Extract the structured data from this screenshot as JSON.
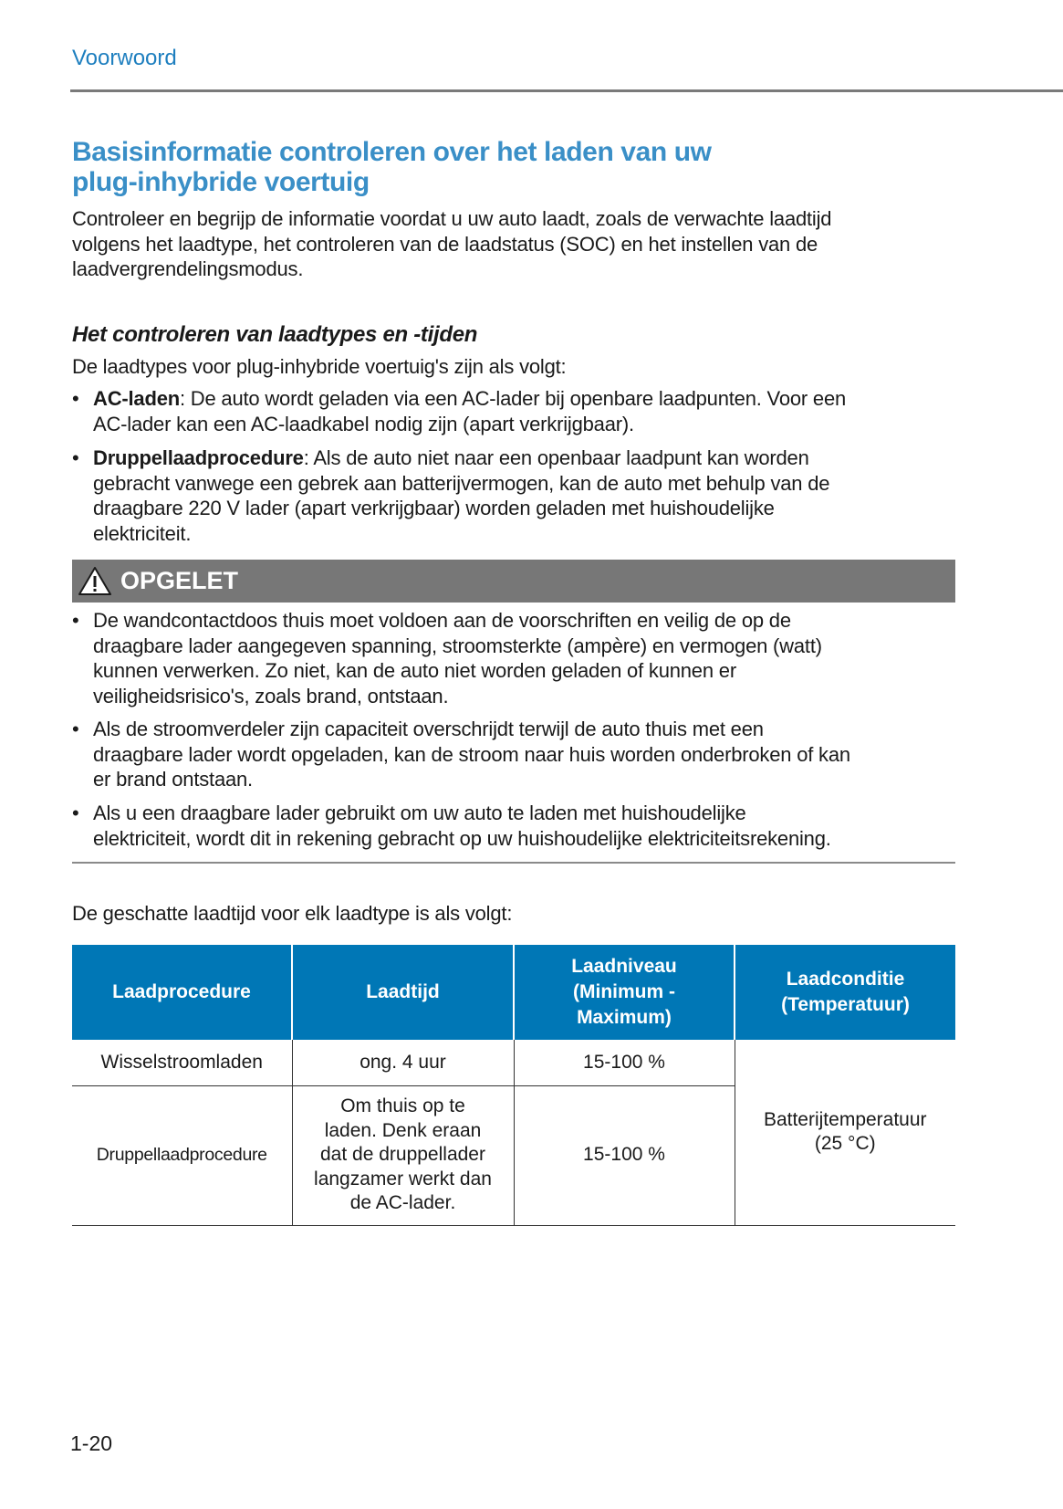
{
  "header": {
    "section": "Voorwoord"
  },
  "title": {
    "lines": [
      "Basisinformatie controleren over het laden van uw",
      "plug-inhybride voertuig"
    ]
  },
  "intro": {
    "lines": [
      "Controleer en begrijp de informatie voordat u uw auto laadt, zoals de verwachte laadtijd",
      "volgens het laadtype, het controleren van de laadstatus (SOC) en het instellen van de",
      "laadvergrendelingsmodus."
    ]
  },
  "subheading": "Het controleren van laadtypes en -tijden",
  "types_intro": "De laadtypes voor plug-inhybride voertuig's zijn als volgt:",
  "types": [
    {
      "term": "AC-laden",
      "lines": [
        ": De auto wordt geladen via een AC-lader bij openbare laadpunten. Voor een",
        "AC-lader kan een AC-laadkabel nodig zijn (apart verkrijgbaar)."
      ]
    },
    {
      "term": "Druppellaadprocedure",
      "lines": [
        ": Als de auto niet naar een openbaar laadpunt kan worden",
        "gebracht vanwege een gebrek aan batterijvermogen, kan de auto met behulp van de",
        "draagbare 220 V lader (apart verkrijgbaar) worden geladen met huishoudelijke",
        "elektriciteit."
      ]
    }
  ],
  "caution": {
    "label": "OPGELET",
    "icon": "warning-triangle-icon",
    "color": "#777777",
    "items": [
      {
        "lines": [
          "De wandcontactdoos thuis moet voldoen aan de voorschriften en veilig de op de",
          "draagbare lader aangegeven spanning, stroomsterkte (ampère) en vermogen (watt)",
          "kunnen verwerken. Zo niet, kan de auto niet worden geladen of kunnen er",
          "veiligheidsrisico's, zoals brand, ontstaan."
        ]
      },
      {
        "lines": [
          "Als de stroomverdeler zijn capaciteit overschrijdt terwijl de auto thuis met een",
          "draagbare lader wordt opgeladen, kan de stroom naar huis worden onderbroken of kan",
          "er brand ontstaan."
        ]
      },
      {
        "lines": [
          "Als u een draagbare lader gebruikt om uw auto te laden met huishoudelijke",
          "elektriciteit, wordt dit in rekening gebracht op uw huishoudelijke elektriciteitsrekening."
        ]
      }
    ]
  },
  "table_intro": "De geschatte laadtijd voor elk laadtype is als volgt:",
  "table": {
    "header_color": "#0077b6",
    "headers": [
      {
        "lines": [
          "Laadprocedure"
        ]
      },
      {
        "lines": [
          "Laadtijd"
        ]
      },
      {
        "lines": [
          "Laadniveau",
          "(Minimum -",
          "Maximum)"
        ]
      },
      {
        "lines": [
          "Laadconditie",
          "(Temperatuur)"
        ]
      }
    ],
    "rows": [
      {
        "procedure": "Wisselstroomladen",
        "time": [
          "ong. 4 uur"
        ],
        "level": "15-100 %"
      },
      {
        "procedure": "Druppellaadprocedure",
        "time": [
          "Om thuis op te",
          "laden. Denk eraan",
          "dat de druppellader",
          "langzamer werkt dan",
          "de AC-lader."
        ],
        "level": "15-100 %"
      }
    ],
    "condition": [
      "Batterijtemperatuur",
      "(25 °C)"
    ]
  },
  "page_number": "1-20"
}
